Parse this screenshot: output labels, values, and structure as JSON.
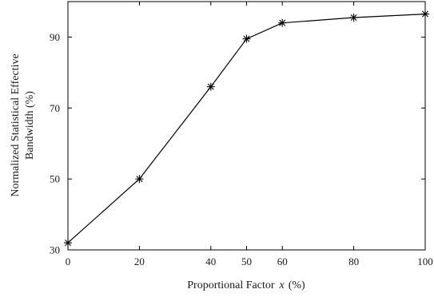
{
  "chart_data": {
    "type": "line",
    "title": "",
    "xlabel": "Proportional Factor",
    "xlabel_var": "x",
    "xlabel_unit": "(%)",
    "ylabel_line1": "Normalized Statistical Effective",
    "ylabel_line2": "Bandwidth  (%)",
    "xlim": [
      0,
      100
    ],
    "ylim": [
      30,
      100
    ],
    "xticks": [
      0,
      20,
      40,
      50,
      60,
      80,
      100
    ],
    "yticks": [
      30,
      50,
      70,
      90
    ],
    "grid": false,
    "marker": "asterisk",
    "line_color": "#000000",
    "series": [
      {
        "x": [
          0,
          20,
          40,
          50,
          60,
          80,
          100
        ],
        "y": [
          32,
          50,
          76,
          89.5,
          94,
          95.5,
          96.5
        ]
      }
    ]
  }
}
